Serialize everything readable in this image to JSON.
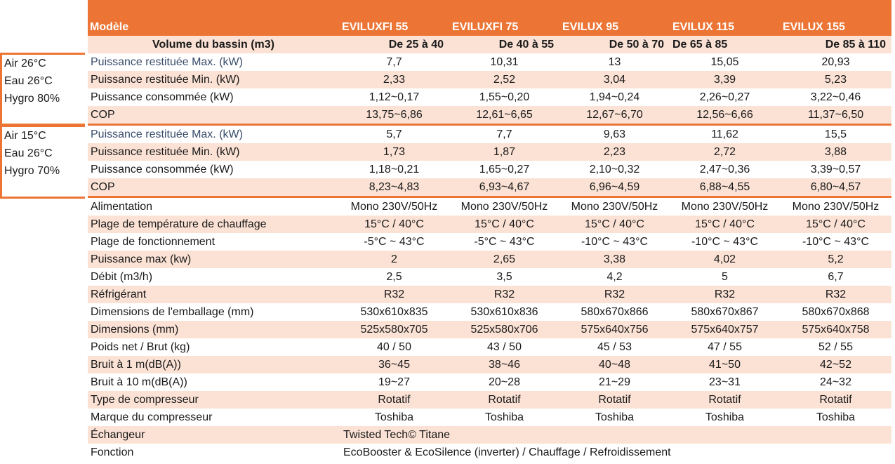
{
  "header": {
    "model_label": "Modèle",
    "models": [
      "EVILUXFI 55",
      "EVILUXFI 75",
      "EVILUX 95",
      "EVILUX 115",
      "EVILUX 155"
    ],
    "volume_label": "Volume du bassin (m3)",
    "volumes": [
      "De 25 à 40",
      "De 40 à 55",
      "De 50 à 70",
      "De 65 à 85",
      "De 85 à 110"
    ]
  },
  "conditions": [
    {
      "lines": [
        "Air 26°C",
        "Eau 26°C",
        "Hygro 80%"
      ]
    },
    {
      "lines": [
        "Air 15°C",
        "Eau 26°C",
        "Hygro 70%"
      ]
    }
  ],
  "group1": [
    {
      "label": "Puissance restituée Max. (kW)",
      "values": [
        "7,7",
        "10,31",
        "13",
        "15,05",
        "20,93"
      ]
    },
    {
      "label": "Puissance restituée Min. (kW)",
      "values": [
        "2,33",
        "2,52",
        "3,04",
        "3,39",
        "5,23"
      ]
    },
    {
      "label": "Puissance consommée (kW)",
      "values": [
        "1,12~0,17",
        "1,55~0,20",
        "1,94~0,24",
        "2,26~0,27",
        "3,22~0,46"
      ]
    },
    {
      "label": "COP",
      "values": [
        "13,75~6,86",
        "12,61~6,65",
        "12,67~6,70",
        "12,56~6,66",
        "11,37~6,50"
      ]
    }
  ],
  "group2": [
    {
      "label": "Puissance restituée Max. (kW)",
      "values": [
        "5,7",
        "7,7",
        "9,63",
        "11,62",
        "15,5"
      ]
    },
    {
      "label": "Puissance restituée Min. (kW)",
      "values": [
        "1,73",
        "1,87",
        "2,23",
        "2,72",
        "3,88"
      ]
    },
    {
      "label": "Puissance consommée (kW)",
      "values": [
        "1,18~0,21",
        "1,65~0,27",
        "2,10~0,32",
        "2,47~0,36",
        "3,39~0,57"
      ]
    },
    {
      "label": "COP",
      "values": [
        "8,23~4,83",
        "6,93~4,67",
        "6,96~4,59",
        "6,88~4,55",
        "6,80~4,57"
      ]
    }
  ],
  "specs": [
    {
      "label": "Alimentation",
      "values": [
        "Mono 230V/50Hz",
        "Mono 230V/50Hz",
        "Mono 230V/50Hz",
        "Mono 230V/50Hz",
        "Mono 230V/50Hz"
      ]
    },
    {
      "label": "Plage de température de chauffage",
      "values": [
        "15°C / 40°C",
        "15°C / 40°C",
        "15°C / 40°C",
        "15°C / 40°C",
        "15°C / 40°C"
      ]
    },
    {
      "label": "Plage de fonctionnement",
      "values": [
        "-5°C ~ 43°C",
        "-5°C ~ 43°C",
        "-10°C ~ 43°C",
        "-10°C ~ 43°C",
        "-10°C ~ 43°C"
      ]
    },
    {
      "label": "Puissance max (kw)",
      "values": [
        "2",
        "2,65",
        "3,38",
        "4,02",
        "5,2"
      ]
    },
    {
      "label": "Débit (m3/h)",
      "values": [
        "2,5",
        "3,5",
        "4,2",
        "5",
        "6,7"
      ]
    },
    {
      "label": "Réfrigérant",
      "values": [
        "R32",
        "R32",
        "R32",
        "R32",
        "R32"
      ]
    },
    {
      "label": "Dimensions de l'emballage (mm)",
      "values": [
        "530x610x835",
        "530x610x836",
        "580x670x866",
        "580x670x867",
        "580x670x868"
      ]
    },
    {
      "label": "Dimensions (mm)",
      "values": [
        "525x580x705",
        "525x580x706",
        "575x640x756",
        "575x640x757",
        "575x640x758"
      ]
    },
    {
      "label": "Poids net / Brut (kg)",
      "values": [
        "40 / 50",
        "43 / 50",
        "45 / 53",
        "47 / 55",
        "52 / 55"
      ]
    },
    {
      "label": "Bruit à 1 m(dB(A))",
      "values": [
        "36~45",
        "38~46",
        "40~48",
        "41~50",
        "42~52"
      ]
    },
    {
      "label": "Bruit à 10 m(dB(A))",
      "values": [
        "19~27",
        "20~28",
        "21~29",
        "23~31",
        "24~32"
      ]
    },
    {
      "label": "Type de compresseur",
      "values": [
        "Rotatif",
        "Rotatif",
        "Rotatif",
        "Rotatif",
        "Rotatif"
      ]
    },
    {
      "label": "Marque du compresseur",
      "values": [
        "Toshiba",
        "Toshiba",
        "Toshiba",
        "Toshiba",
        "Toshiba"
      ]
    }
  ],
  "span_rows": [
    {
      "label": "Échangeur",
      "value": "Twisted Tech© Titane"
    },
    {
      "label": "Fonction",
      "value": "EcoBooster & EcoSilence (inverter) / Chauffage / Refroidissement"
    }
  ],
  "colors": {
    "accent": "#ec7535",
    "band": "#fbe2d5"
  }
}
